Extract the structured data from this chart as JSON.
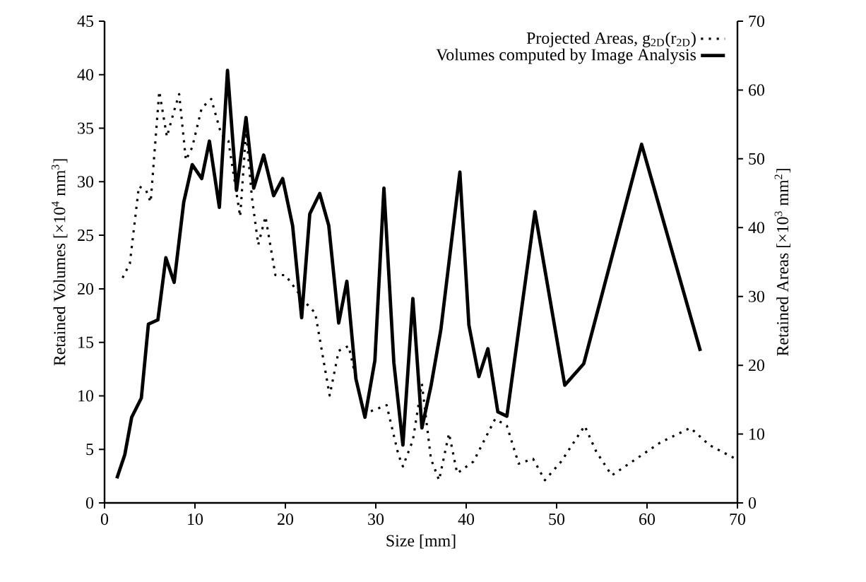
{
  "chart_data": {
    "type": "line",
    "xlabel": "Size [mm]",
    "ylabel": "Retained Volumes [×10$^{4}$ mm$^{3}$]",
    "y2label": "Retained Areas [×10$^{3}$ mm$^{2}$]",
    "xlim": [
      0,
      70
    ],
    "xticks": [
      0,
      10,
      20,
      30,
      40,
      50,
      60,
      70
    ],
    "ylim": [
      0,
      45
    ],
    "yticks": [
      0,
      5,
      10,
      15,
      20,
      25,
      30,
      35,
      40,
      45
    ],
    "y2lim": [
      0,
      70
    ],
    "y2ticks": [
      0,
      10,
      20,
      30,
      40,
      50,
      60,
      70
    ],
    "legend": "top right",
    "marker": "none",
    "grid": false,
    "series": [
      {
        "name": "Projected Areas, g$_{2D}$(r$_{2D}$)",
        "color": "#000000",
        "axis": "y2",
        "line_style": "dotted",
        "x": [
          2.0,
          2.8,
          3.8,
          4.6,
          5.1,
          6.05,
          6.9,
          7.7,
          8.25,
          9.0,
          9.7,
          10.75,
          11.8,
          12.9,
          13.7,
          15.0,
          15.65,
          16.3,
          17.0,
          17.8,
          18.9,
          20.0,
          22.3,
          23.3,
          24.9,
          25.9,
          27.0,
          28.3,
          28.8,
          31.2,
          32.5,
          33.0,
          34.1,
          35.1,
          36.1,
          37.0,
          38.1,
          39.0,
          40.8,
          43.2,
          44.5,
          45.8,
          47.4,
          48.7,
          50.5,
          53.1,
          54.4,
          56.1,
          61.5,
          64.8,
          66.9,
          69.8
        ],
        "values": [
          32.7,
          34.8,
          46,
          45.4,
          43.7,
          59.8,
          53.2,
          57,
          59.4,
          49.8,
          51.7,
          57.4,
          58.7,
          53.6,
          52.6,
          41.6,
          53.9,
          44.4,
          37.5,
          41.6,
          33.1,
          33.1,
          29,
          27.6,
          15.6,
          22.1,
          22.8,
          15.3,
          13,
          14.2,
          7,
          5.3,
          9.1,
          17.3,
          6.4,
          3.3,
          10.1,
          4.3,
          6,
          12.2,
          11.2,
          5.7,
          6.4,
          3.3,
          6,
          11.2,
          7.4,
          4,
          8.8,
          10.9,
          8.4,
          6.4
        ]
      },
      {
        "name": "Volumes computed by Image Analysis",
        "color": "#000000",
        "line_style": "solid",
        "x": [
          1.36,
          2.24,
          3.0,
          4.07,
          4.85,
          5.9,
          6.78,
          7.7,
          8.76,
          9.7,
          10.75,
          11.6,
          12.7,
          13.6,
          14.6,
          15.65,
          16.5,
          17.6,
          18.7,
          19.7,
          20.8,
          21.8,
          22.7,
          23.8,
          24.8,
          25.9,
          26.8,
          27.8,
          28.8,
          29.9,
          30.9,
          32.0,
          33.0,
          34.1,
          35.1,
          36.1,
          37.2,
          39.3,
          40.3,
          41.4,
          42.4,
          43.5,
          44.5,
          47.6,
          50.9,
          53.0,
          59.4,
          65.9
        ],
        "values": [
          2.3,
          4.5,
          8.0,
          9.8,
          16.7,
          17.1,
          22.9,
          20.6,
          28.1,
          31.6,
          30.3,
          33.8,
          27.6,
          40.4,
          29.2,
          36,
          29.4,
          32.5,
          28.7,
          30.3,
          25.9,
          17.3,
          27,
          28.9,
          25.9,
          16.8,
          20.7,
          11.6,
          8,
          13.3,
          29.4,
          13.1,
          5.4,
          19.1,
          7,
          10.9,
          16.2,
          30.9,
          16.6,
          11.8,
          14.4,
          8.5,
          8.1,
          27.2,
          11,
          13,
          33.5,
          14.2
        ]
      }
    ]
  }
}
